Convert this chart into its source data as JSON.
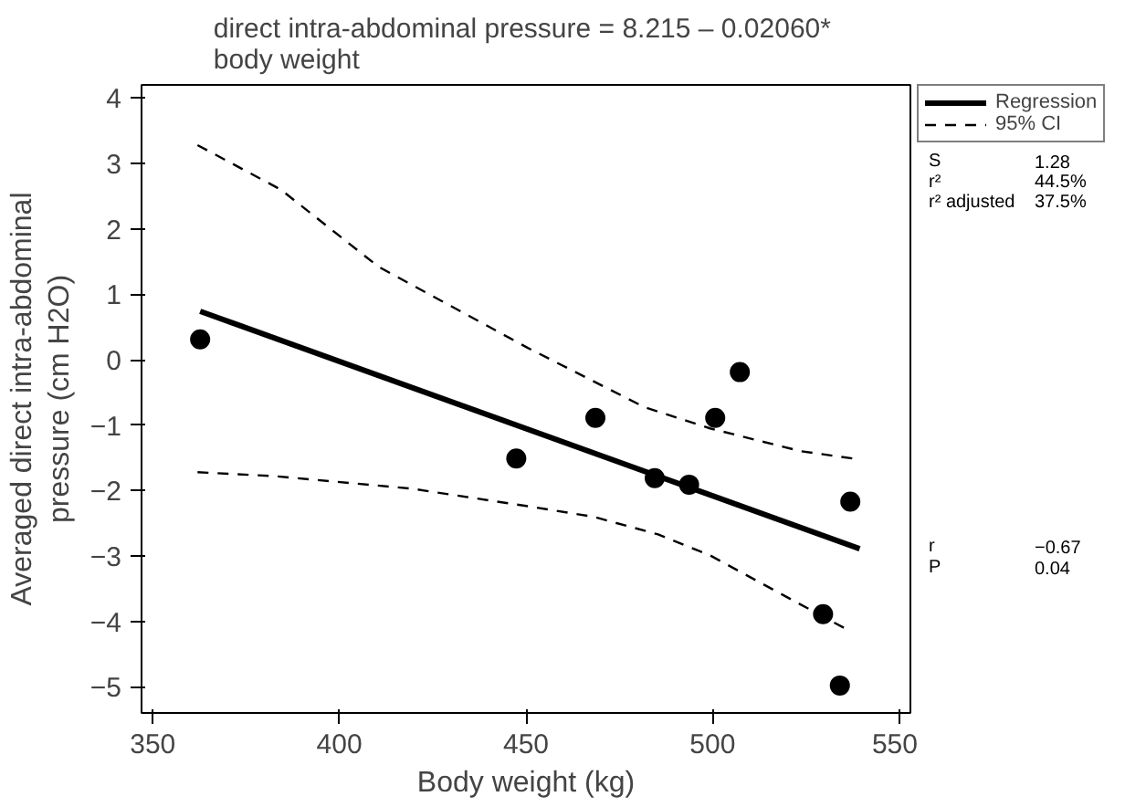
{
  "chart_data": {
    "type": "scatter",
    "title": "direct intra-abdominal pressure =  8.215 – 0.02060* body weight",
    "xlabel": "Body weight (kg)",
    "ylabel": "Averaged direct intra-abdominal pressure (cm H2O)",
    "xlim": [
      347,
      553
    ],
    "ylim": [
      -5.4,
      4.2
    ],
    "xticks": [
      350,
      400,
      450,
      500,
      550
    ],
    "yticks": [
      -5,
      -4,
      -3,
      -2,
      -1,
      0,
      1,
      2,
      3,
      4
    ],
    "grid": false,
    "legend": "top right",
    "series": [
      {
        "color": "#000000",
        "marker": "circle",
        "x": [
          362.7,
          447.4,
          468.6,
          484.5,
          493.7,
          500.7,
          507.3,
          529.6,
          534.1,
          536.9
        ],
        "values": [
          0.31,
          -1.51,
          -0.89,
          -1.81,
          -1.91,
          -0.89,
          -0.19,
          -3.89,
          -4.98,
          -2.17
        ]
      },
      {
        "type": "line",
        "name": "Regression",
        "color": "#000000",
        "line_style": "solid",
        "x": [
          362.7,
          539.4
        ],
        "values": [
          0.74,
          -2.89
        ]
      },
      {
        "type": "line",
        "name": "95% CI",
        "color": "#000000",
        "line_style": "dashed",
        "x": [
          362,
          384.3,
          410.5,
          450.5,
          481.9,
          499.3,
          523.7,
          537.6
        ],
        "values": [
          3.28,
          2.6,
          1.42,
          0.18,
          -0.73,
          -1.05,
          -1.4,
          -1.51
        ]
      },
      {
        "type": "line",
        "color": "#000000",
        "line_style": "dashed",
        "x": [
          362,
          382.6,
          419.2,
          450.5,
          468,
          485.4,
          499.3,
          516.7,
          536.2
        ],
        "values": [
          -1.72,
          -1.78,
          -1.97,
          -2.24,
          -2.4,
          -2.67,
          -2.99,
          -3.53,
          -4.13
        ]
      }
    ],
    "annotations": [
      "S",
      "1.28",
      "r²",
      "44.5%",
      "r² adjusted",
      "37.5%",
      "r",
      "−0.67",
      "P",
      "0.04"
    ]
  }
}
